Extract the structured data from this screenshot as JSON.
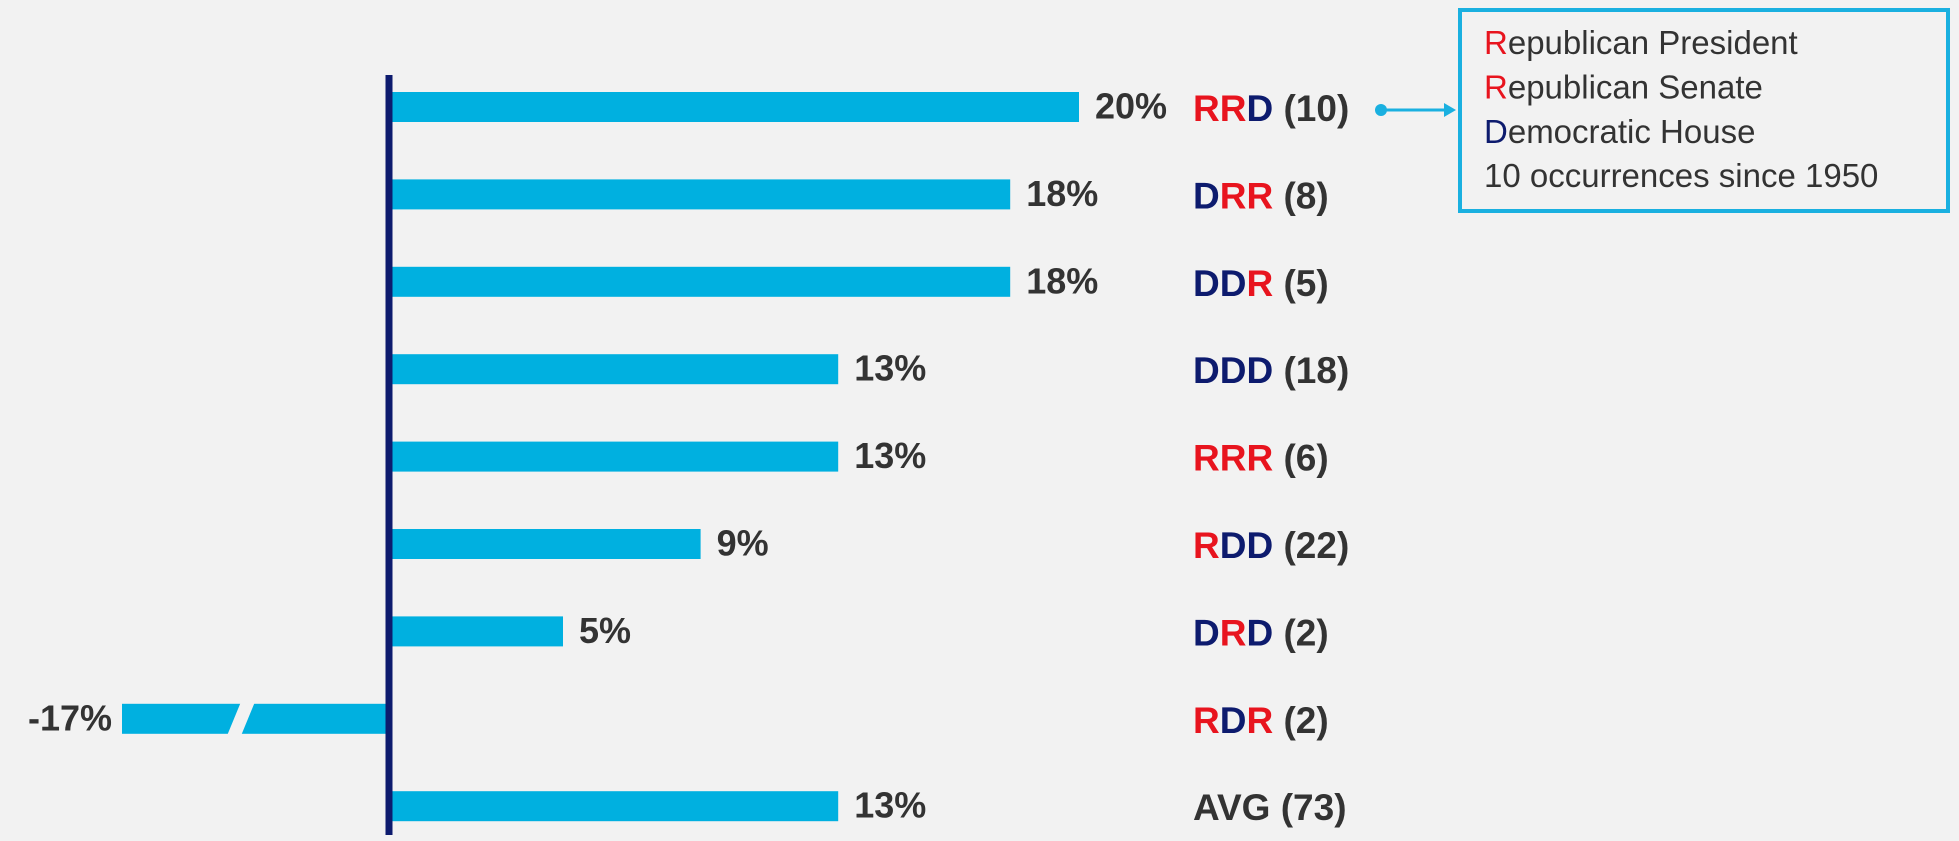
{
  "chart_data": {
    "type": "bar",
    "orientation": "horizontal",
    "categories": [
      "RRD (10)",
      "DRR (8)",
      "DDR (5)",
      "DDD (18)",
      "RRR (6)",
      "RDD (22)",
      "DRD (2)",
      "RDR (2)",
      "AVG (73)"
    ],
    "values": [
      20,
      18,
      18,
      13,
      13,
      9,
      5,
      -17,
      13
    ],
    "value_labels": [
      "20%",
      "18%",
      "18%",
      "13%",
      "13%",
      "9%",
      "5%",
      "-17%",
      "13%"
    ],
    "color": "#00b0e0",
    "letter_colors": {
      "R": "#e8141e",
      "D": "#0d1b6e"
    },
    "annotation": {
      "lines": [
        "Republican President",
        "Republican Senate",
        "Democratic House",
        "10 occurrences since 1950"
      ]
    }
  }
}
